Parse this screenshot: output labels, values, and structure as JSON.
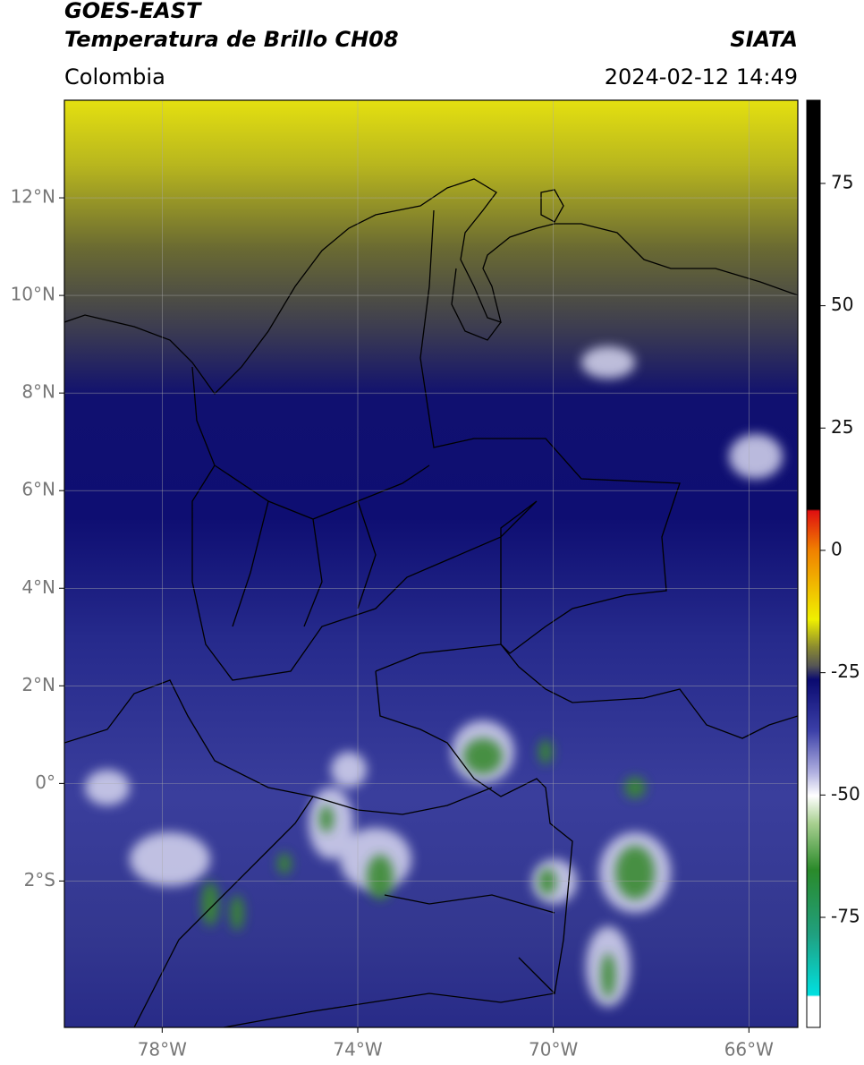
{
  "header": {
    "title": "GOES-EAST",
    "subtitle": "Temperatura de Brillo CH08",
    "source": "SIATA",
    "region": "Colombia",
    "datetime": "2024-02-12 14:49"
  },
  "map": {
    "xlim": [
      -80,
      -65
    ],
    "ylim": [
      -5,
      14
    ],
    "xticks": [
      {
        "value": -78,
        "label": "78°W"
      },
      {
        "value": -74,
        "label": "74°W"
      },
      {
        "value": -70,
        "label": "70°W"
      },
      {
        "value": -66,
        "label": "66°W"
      }
    ],
    "yticks": [
      {
        "value": 12,
        "label": "12°N"
      },
      {
        "value": 10,
        "label": "10°N"
      },
      {
        "value": 8,
        "label": "8°N"
      },
      {
        "value": 6,
        "label": "6°N"
      },
      {
        "value": 4,
        "label": "4°N"
      },
      {
        "value": 2,
        "label": "2°N"
      },
      {
        "value": 0,
        "label": "0°"
      },
      {
        "value": -2,
        "label": "2°S"
      }
    ],
    "grid": true
  },
  "colorbar": {
    "lim": [
      -97.5,
      92
    ],
    "ticks": [
      75,
      50,
      25,
      0,
      -25,
      -50,
      -75
    ]
  }
}
